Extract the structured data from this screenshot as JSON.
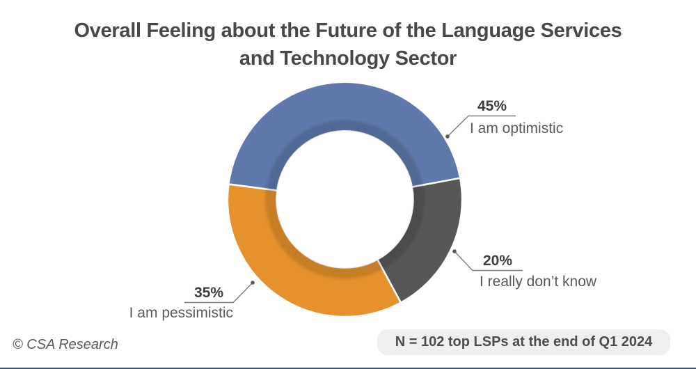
{
  "title": {
    "line1": "Overall Feeling about the Future of the Language Services",
    "line2": "and Technology Sector"
  },
  "chart_data": {
    "type": "pie",
    "subtype": "donut",
    "title": "Overall Feeling about the Future of the Language Services and Technology Sector",
    "categories": [
      "I am optimistic",
      "I really don’t know",
      "I am pessimistic"
    ],
    "values": [
      45,
      20,
      35
    ],
    "unit": "%",
    "start_angle_deg": -82.5,
    "direction": "clockwise",
    "segments": [
      {
        "label": "I am optimistic",
        "value": 45,
        "color": "#6079ac"
      },
      {
        "label": "I really don’t know",
        "value": 20,
        "color": "#575757"
      },
      {
        "label": "I am pessimistic",
        "value": 35,
        "color": "#e6922c"
      }
    ],
    "legend_position": "none",
    "data_labels": "outside-with-leader-lines"
  },
  "annotations": [
    {
      "pct": "45%",
      "label": "I am optimistic"
    },
    {
      "pct": "20%",
      "label": "I really don’t know"
    },
    {
      "pct": "35%",
      "label": "I am pessimistic"
    }
  ],
  "footer": {
    "copyright": "© CSA Research",
    "note": "N = 102 top LSPs at the end of Q1 2024"
  },
  "colors": {
    "optimistic": "#6079ac",
    "dont_know": "#575757",
    "pessimistic": "#e6922c",
    "title_text": "#484848",
    "label_text": "#595959",
    "pct_text": "#3f3f3f",
    "leader_line": "#7f7f7f",
    "badge_bg": "#efefef",
    "accent_bar": "#44546a",
    "segment_gap": "#ffffff"
  }
}
